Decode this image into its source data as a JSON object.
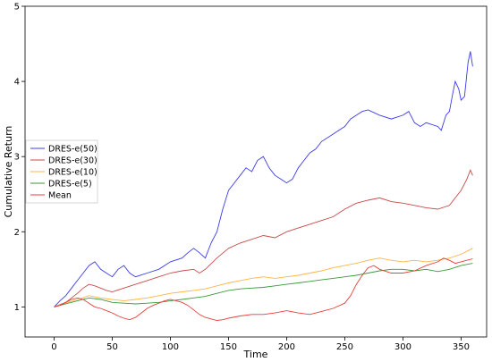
{
  "chart_data": {
    "type": "line",
    "title": "",
    "xlabel": "Time",
    "ylabel": "Cumulative Return",
    "xlim": [
      -25,
      372
    ],
    "ylim": [
      0.6,
      5.0
    ],
    "xticks": [
      0,
      50,
      100,
      150,
      200,
      250,
      300,
      350
    ],
    "yticks": [
      1,
      2,
      3,
      4,
      5
    ],
    "grid": false,
    "legend_position": "center-left",
    "series": [
      {
        "name": "DRES-e(50)",
        "color": "#3b3bf0",
        "points": [
          [
            0,
            1.0
          ],
          [
            5,
            1.08
          ],
          [
            10,
            1.15
          ],
          [
            15,
            1.25
          ],
          [
            20,
            1.35
          ],
          [
            25,
            1.45
          ],
          [
            30,
            1.55
          ],
          [
            35,
            1.6
          ],
          [
            40,
            1.5
          ],
          [
            45,
            1.45
          ],
          [
            50,
            1.4
          ],
          [
            55,
            1.5
          ],
          [
            60,
            1.55
          ],
          [
            65,
            1.45
          ],
          [
            70,
            1.4
          ],
          [
            80,
            1.45
          ],
          [
            90,
            1.5
          ],
          [
            100,
            1.6
          ],
          [
            110,
            1.65
          ],
          [
            115,
            1.72
          ],
          [
            120,
            1.78
          ],
          [
            125,
            1.72
          ],
          [
            130,
            1.65
          ],
          [
            135,
            1.85
          ],
          [
            140,
            2.0
          ],
          [
            145,
            2.3
          ],
          [
            150,
            2.55
          ],
          [
            155,
            2.65
          ],
          [
            160,
            2.75
          ],
          [
            165,
            2.85
          ],
          [
            170,
            2.8
          ],
          [
            175,
            2.95
          ],
          [
            180,
            3.0
          ],
          [
            185,
            2.85
          ],
          [
            190,
            2.75
          ],
          [
            195,
            2.7
          ],
          [
            200,
            2.65
          ],
          [
            205,
            2.7
          ],
          [
            210,
            2.85
          ],
          [
            215,
            2.95
          ],
          [
            220,
            3.05
          ],
          [
            225,
            3.1
          ],
          [
            230,
            3.2
          ],
          [
            240,
            3.3
          ],
          [
            250,
            3.4
          ],
          [
            255,
            3.5
          ],
          [
            260,
            3.55
          ],
          [
            265,
            3.6
          ],
          [
            270,
            3.62
          ],
          [
            280,
            3.55
          ],
          [
            290,
            3.5
          ],
          [
            300,
            3.55
          ],
          [
            305,
            3.6
          ],
          [
            310,
            3.45
          ],
          [
            315,
            3.4
          ],
          [
            320,
            3.45
          ],
          [
            330,
            3.4
          ],
          [
            333,
            3.35
          ],
          [
            337,
            3.55
          ],
          [
            340,
            3.6
          ],
          [
            343,
            3.85
          ],
          [
            345,
            4.0
          ],
          [
            348,
            3.9
          ],
          [
            350,
            3.75
          ],
          [
            353,
            3.8
          ],
          [
            356,
            4.25
          ],
          [
            358,
            4.4
          ],
          [
            360,
            4.2
          ]
        ]
      },
      {
        "name": "DRES-e(30)",
        "color": "#c84a4a",
        "points": [
          [
            0,
            1.0
          ],
          [
            5,
            1.03
          ],
          [
            10,
            1.06
          ],
          [
            15,
            1.12
          ],
          [
            20,
            1.18
          ],
          [
            25,
            1.25
          ],
          [
            30,
            1.3
          ],
          [
            35,
            1.28
          ],
          [
            40,
            1.25
          ],
          [
            45,
            1.22
          ],
          [
            50,
            1.2
          ],
          [
            60,
            1.25
          ],
          [
            70,
            1.3
          ],
          [
            80,
            1.35
          ],
          [
            90,
            1.4
          ],
          [
            100,
            1.45
          ],
          [
            110,
            1.48
          ],
          [
            120,
            1.5
          ],
          [
            125,
            1.45
          ],
          [
            130,
            1.5
          ],
          [
            140,
            1.65
          ],
          [
            150,
            1.78
          ],
          [
            160,
            1.85
          ],
          [
            170,
            1.9
          ],
          [
            180,
            1.95
          ],
          [
            190,
            1.92
          ],
          [
            200,
            2.0
          ],
          [
            210,
            2.05
          ],
          [
            220,
            2.1
          ],
          [
            230,
            2.15
          ],
          [
            240,
            2.2
          ],
          [
            250,
            2.3
          ],
          [
            260,
            2.38
          ],
          [
            270,
            2.42
          ],
          [
            280,
            2.45
          ],
          [
            290,
            2.4
          ],
          [
            300,
            2.38
          ],
          [
            310,
            2.35
          ],
          [
            320,
            2.32
          ],
          [
            330,
            2.3
          ],
          [
            340,
            2.35
          ],
          [
            345,
            2.45
          ],
          [
            350,
            2.55
          ],
          [
            355,
            2.7
          ],
          [
            358,
            2.82
          ],
          [
            360,
            2.75
          ]
        ]
      },
      {
        "name": "DRES-e(10)",
        "color": "#ffb347",
        "points": [
          [
            0,
            1.0
          ],
          [
            10,
            1.05
          ],
          [
            20,
            1.1
          ],
          [
            30,
            1.15
          ],
          [
            40,
            1.12
          ],
          [
            50,
            1.1
          ],
          [
            60,
            1.08
          ],
          [
            70,
            1.1
          ],
          [
            80,
            1.12
          ],
          [
            90,
            1.15
          ],
          [
            100,
            1.18
          ],
          [
            110,
            1.2
          ],
          [
            120,
            1.22
          ],
          [
            130,
            1.24
          ],
          [
            140,
            1.28
          ],
          [
            150,
            1.32
          ],
          [
            160,
            1.35
          ],
          [
            170,
            1.38
          ],
          [
            180,
            1.4
          ],
          [
            190,
            1.38
          ],
          [
            200,
            1.4
          ],
          [
            210,
            1.42
          ],
          [
            220,
            1.45
          ],
          [
            230,
            1.48
          ],
          [
            240,
            1.52
          ],
          [
            250,
            1.55
          ],
          [
            260,
            1.58
          ],
          [
            270,
            1.62
          ],
          [
            280,
            1.65
          ],
          [
            290,
            1.62
          ],
          [
            300,
            1.6
          ],
          [
            310,
            1.62
          ],
          [
            320,
            1.6
          ],
          [
            330,
            1.62
          ],
          [
            340,
            1.65
          ],
          [
            350,
            1.7
          ],
          [
            360,
            1.78
          ]
        ]
      },
      {
        "name": "DRES-e(5)",
        "color": "#3a9a3a",
        "points": [
          [
            0,
            1.0
          ],
          [
            10,
            1.04
          ],
          [
            20,
            1.08
          ],
          [
            30,
            1.12
          ],
          [
            40,
            1.1
          ],
          [
            50,
            1.06
          ],
          [
            60,
            1.05
          ],
          [
            70,
            1.04
          ],
          [
            80,
            1.05
          ],
          [
            90,
            1.06
          ],
          [
            100,
            1.08
          ],
          [
            110,
            1.1
          ],
          [
            120,
            1.12
          ],
          [
            130,
            1.14
          ],
          [
            140,
            1.18
          ],
          [
            150,
            1.22
          ],
          [
            160,
            1.24
          ],
          [
            170,
            1.25
          ],
          [
            180,
            1.26
          ],
          [
            190,
            1.28
          ],
          [
            200,
            1.3
          ],
          [
            210,
            1.32
          ],
          [
            220,
            1.34
          ],
          [
            230,
            1.36
          ],
          [
            240,
            1.38
          ],
          [
            250,
            1.4
          ],
          [
            260,
            1.42
          ],
          [
            270,
            1.45
          ],
          [
            280,
            1.48
          ],
          [
            290,
            1.5
          ],
          [
            300,
            1.5
          ],
          [
            310,
            1.48
          ],
          [
            320,
            1.5
          ],
          [
            330,
            1.47
          ],
          [
            340,
            1.5
          ],
          [
            350,
            1.55
          ],
          [
            360,
            1.58
          ]
        ]
      },
      {
        "name": "Mean",
        "color": "#ee3b3b",
        "points": [
          [
            0,
            1.0
          ],
          [
            5,
            1.02
          ],
          [
            10,
            1.06
          ],
          [
            15,
            1.1
          ],
          [
            20,
            1.12
          ],
          [
            25,
            1.1
          ],
          [
            30,
            1.05
          ],
          [
            35,
            1.0
          ],
          [
            40,
            0.98
          ],
          [
            45,
            0.95
          ],
          [
            50,
            0.92
          ],
          [
            55,
            0.88
          ],
          [
            60,
            0.85
          ],
          [
            65,
            0.83
          ],
          [
            70,
            0.86
          ],
          [
            75,
            0.92
          ],
          [
            80,
            0.98
          ],
          [
            85,
            1.02
          ],
          [
            90,
            1.05
          ],
          [
            95,
            1.08
          ],
          [
            100,
            1.1
          ],
          [
            105,
            1.08
          ],
          [
            110,
            1.06
          ],
          [
            115,
            1.02
          ],
          [
            120,
            0.96
          ],
          [
            125,
            0.9
          ],
          [
            130,
            0.86
          ],
          [
            135,
            0.84
          ],
          [
            140,
            0.82
          ],
          [
            145,
            0.83
          ],
          [
            150,
            0.85
          ],
          [
            160,
            0.88
          ],
          [
            170,
            0.9
          ],
          [
            180,
            0.9
          ],
          [
            190,
            0.92
          ],
          [
            200,
            0.95
          ],
          [
            210,
            0.92
          ],
          [
            220,
            0.9
          ],
          [
            230,
            0.94
          ],
          [
            240,
            0.98
          ],
          [
            250,
            1.05
          ],
          [
            255,
            1.15
          ],
          [
            260,
            1.3
          ],
          [
            265,
            1.42
          ],
          [
            270,
            1.52
          ],
          [
            275,
            1.55
          ],
          [
            280,
            1.5
          ],
          [
            290,
            1.45
          ],
          [
            300,
            1.45
          ],
          [
            310,
            1.48
          ],
          [
            320,
            1.55
          ],
          [
            330,
            1.6
          ],
          [
            335,
            1.65
          ],
          [
            340,
            1.62
          ],
          [
            345,
            1.58
          ],
          [
            350,
            1.6
          ],
          [
            355,
            1.62
          ],
          [
            360,
            1.64
          ]
        ]
      }
    ]
  }
}
